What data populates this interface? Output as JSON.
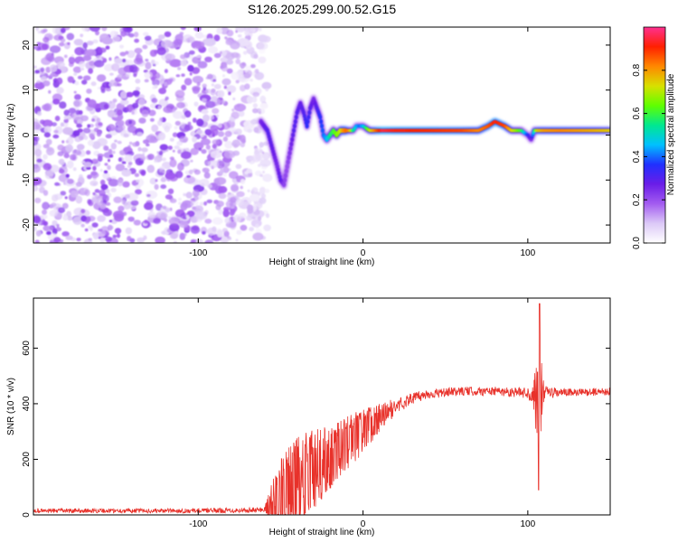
{
  "title": "S126.2025.299.00.52.G15",
  "chart_data": [
    {
      "type": "heatmap",
      "name": "spectrogram",
      "xlabel": "Height of straight line (km)",
      "ylabel": "Frequency (Hz)",
      "xlim": [
        -200,
        150
      ],
      "ylim": [
        -24,
        24
      ],
      "xticks": [
        -100,
        0,
        100
      ],
      "yticks": [
        -20,
        -10,
        0,
        10,
        20
      ],
      "noise_region_x": [
        -200,
        -60
      ],
      "colorbar": {
        "label": "Normalized spectral amplitude",
        "range": [
          0,
          1
        ],
        "ticks": [
          0.0,
          0.2,
          0.4,
          0.6,
          0.8
        ],
        "colors": [
          "#ffffff",
          "#dcc9f7",
          "#a35cf0",
          "#6a1de8",
          "#2030ff",
          "#00c0ff",
          "#00e890",
          "#60ff00",
          "#d8e000",
          "#ff8800",
          "#ff2000",
          "#ff3090"
        ]
      },
      "ridge": {
        "x": [
          -62,
          -58,
          -55,
          -52,
          -50,
          -48,
          -46,
          -44,
          -42,
          -40,
          -38,
          -36,
          -34,
          -32,
          -30,
          -28,
          -26,
          -24,
          -22,
          -20,
          -18,
          -16,
          -14,
          -12,
          -10,
          -8,
          -6,
          -4,
          -2,
          0,
          4,
          8,
          12,
          20,
          40,
          60,
          70,
          76,
          80,
          86,
          90,
          96,
          100,
          102,
          104,
          106,
          110,
          120,
          130,
          140,
          150
        ],
        "freq": [
          3,
          1,
          -3,
          -7,
          -10,
          -11,
          -7,
          -3,
          1,
          5,
          7,
          5,
          2,
          6,
          8,
          6,
          4,
          0,
          -1,
          0,
          1,
          0,
          1,
          1,
          1,
          1,
          1,
          2,
          2,
          2,
          1,
          1,
          1,
          1,
          1,
          1,
          1,
          2,
          3,
          2,
          1,
          1,
          0,
          -1,
          1,
          1,
          1,
          1,
          1,
          1,
          1
        ],
        "amp": [
          0.25,
          0.3,
          0.28,
          0.25,
          0.3,
          0.22,
          0.2,
          0.25,
          0.3,
          0.3,
          0.28,
          0.3,
          0.35,
          0.3,
          0.25,
          0.3,
          0.35,
          0.4,
          0.45,
          0.55,
          0.6,
          0.65,
          0.7,
          0.8,
          0.85,
          0.8,
          0.55,
          0.45,
          0.4,
          0.45,
          0.7,
          0.85,
          0.95,
          0.92,
          0.9,
          0.88,
          0.82,
          0.86,
          0.92,
          0.88,
          0.75,
          0.6,
          0.35,
          0.25,
          0.55,
          0.75,
          0.8,
          0.82,
          0.8,
          0.78,
          0.75
        ]
      }
    },
    {
      "type": "line",
      "name": "snr",
      "xlabel": "Height of straight line (km)",
      "ylabel": "SNR (10 * v/v)",
      "xlim": [
        -200,
        150
      ],
      "ylim": [
        0,
        780
      ],
      "xticks": [
        -100,
        0,
        100
      ],
      "yticks": [
        0,
        200,
        400,
        600
      ],
      "color": "#e8312a",
      "envelope": {
        "x": [
          -200,
          -100,
          -60,
          -50,
          -40,
          -30,
          -20,
          -10,
          0,
          10,
          20,
          30,
          40,
          50,
          60,
          80,
          100,
          104,
          106,
          108,
          110,
          120,
          130,
          150
        ],
        "mean": [
          15,
          15,
          18,
          60,
          110,
          160,
          210,
          260,
          300,
          350,
          390,
          420,
          435,
          440,
          445,
          445,
          440,
          430,
          420,
          430,
          440,
          440,
          440,
          445
        ],
        "spread": [
          8,
          8,
          10,
          150,
          170,
          150,
          120,
          100,
          80,
          50,
          30,
          20,
          18,
          16,
          16,
          16,
          20,
          60,
          180,
          120,
          25,
          15,
          14,
          14
        ]
      }
    }
  ]
}
